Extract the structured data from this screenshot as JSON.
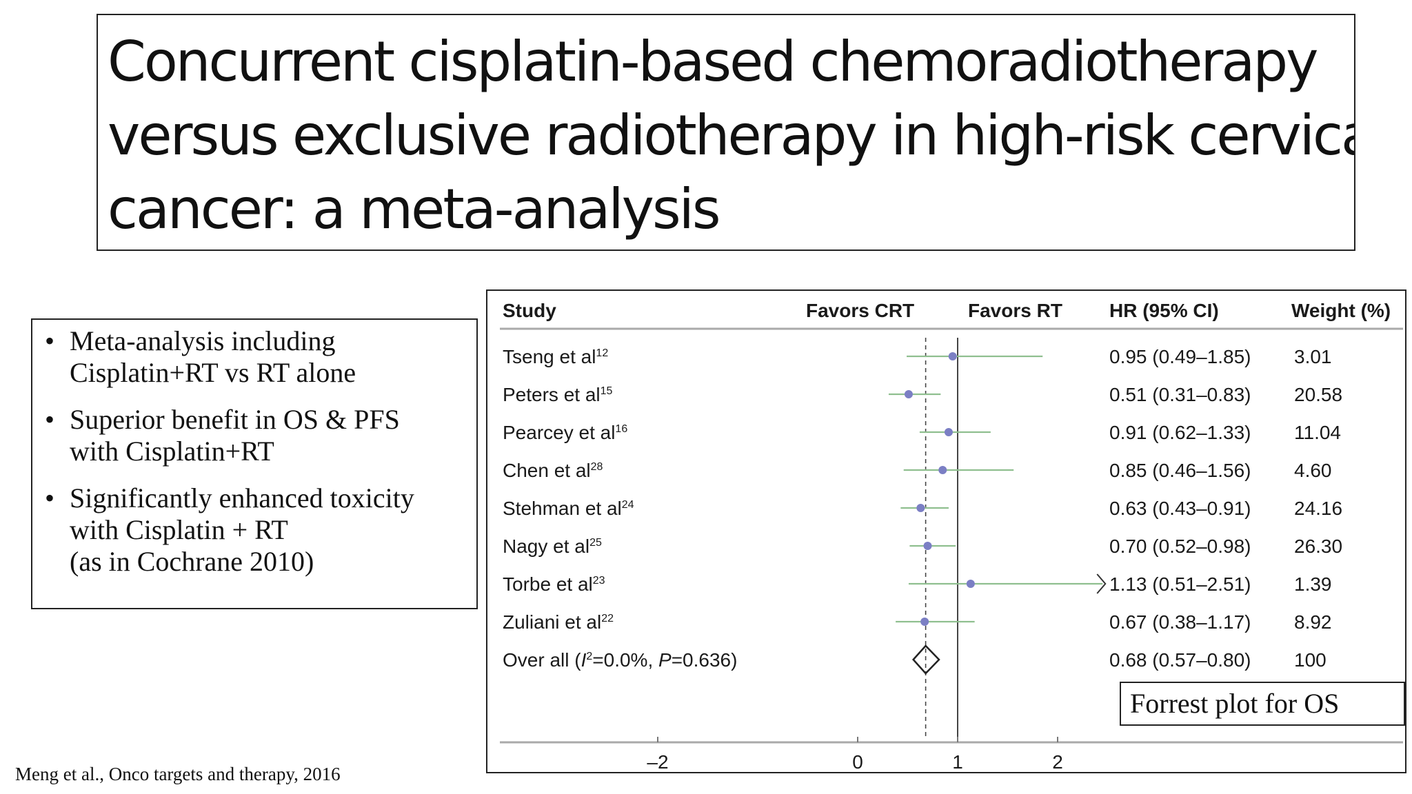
{
  "title": {
    "lines": [
      "Concurrent cisplatin-based chemoradiotherapy",
      "versus exclusive radiotherapy in high-risk cervical",
      "cancer: a meta-analysis"
    ]
  },
  "bullets": [
    {
      "lines": [
        "Meta-analysis including",
        "Cisplatin+RT vs RT alone"
      ]
    },
    {
      "lines": [
        "Superior benefit in OS & PFS",
        "with Cisplatin+RT"
      ]
    },
    {
      "lines": [
        "Significantly enhanced toxicity",
        "with Cisplatin + RT",
        "(as in Cochrane 2010)"
      ]
    }
  ],
  "citation": "Meng et al., Onco targets and therapy, 2016",
  "colors": {
    "point": "#7b7fc4",
    "ci_line": "#8fbf8f",
    "axis": "#555555",
    "null_line": "#444444",
    "pooled_line": "#444444"
  },
  "chart_data": {
    "type": "forest",
    "headers": {
      "study": "Study",
      "favors_left": "Favors CRT",
      "favors_right": "Favors RT",
      "hr": "HR (95% CI)",
      "weight": "Weight (%)"
    },
    "studies": [
      {
        "name": "Tseng et al",
        "ref": "12",
        "hr": 0.95,
        "lo": 0.49,
        "hi": 1.85,
        "hr_text": "0.95 (0.49–1.85)",
        "weight": "3.01"
      },
      {
        "name": "Peters et al",
        "ref": "15",
        "hr": 0.51,
        "lo": 0.31,
        "hi": 0.83,
        "hr_text": "0.51 (0.31–0.83)",
        "weight": "20.58"
      },
      {
        "name": "Pearcey et al",
        "ref": "16",
        "hr": 0.91,
        "lo": 0.62,
        "hi": 1.33,
        "hr_text": "0.91 (0.62–1.33)",
        "weight": "11.04"
      },
      {
        "name": "Chen et al",
        "ref": "28",
        "hr": 0.85,
        "lo": 0.46,
        "hi": 1.56,
        "hr_text": "0.85 (0.46–1.56)",
        "weight": "4.60"
      },
      {
        "name": "Stehman et al",
        "ref": "24",
        "hr": 0.63,
        "lo": 0.43,
        "hi": 0.91,
        "hr_text": "0.63 (0.43–0.91)",
        "weight": "24.16"
      },
      {
        "name": "Nagy et al",
        "ref": "25",
        "hr": 0.7,
        "lo": 0.52,
        "hi": 0.98,
        "hr_text": "0.70 (0.52–0.98)",
        "weight": "26.30"
      },
      {
        "name": "Torbe et al",
        "ref": "23",
        "hr": 1.13,
        "lo": 0.51,
        "hi": 2.51,
        "hr_text": "1.13 (0.51–2.51)",
        "weight": "1.39"
      },
      {
        "name": "Zuliani et al",
        "ref": "22",
        "hr": 0.67,
        "lo": 0.38,
        "hi": 1.17,
        "hr_text": "0.67 (0.38–1.17)",
        "weight": "8.92"
      }
    ],
    "overall": {
      "label_prefix": "Over all (",
      "i_symbol": "I",
      "i_sup": "2",
      "i_value": "=0.0%, ",
      "p_symbol": "P",
      "p_value": "=0.636)",
      "hr": 0.68,
      "lo": 0.57,
      "hi": 0.8,
      "hr_text": "0.68 (0.57–0.80)",
      "weight": "100"
    },
    "x_ticks": [
      {
        "value": -2,
        "label": "–2"
      },
      {
        "value": 0,
        "label": "0"
      },
      {
        "value": 1,
        "label": "1"
      },
      {
        "value": 2,
        "label": "2"
      }
    ],
    "xlim": [
      -3.2,
      3.0
    ],
    "null_value": 1,
    "annotation": "Forrest plot for OS"
  }
}
